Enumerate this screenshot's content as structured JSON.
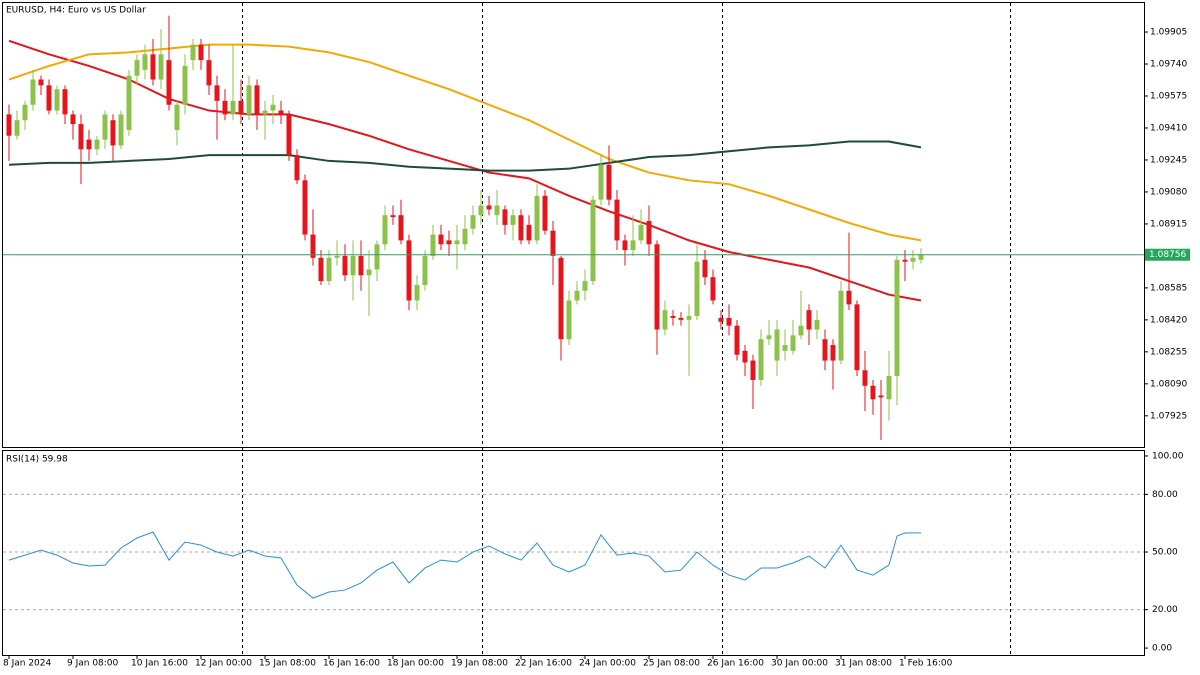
{
  "chart_data": [
    {
      "type": "candlestick",
      "title": "EURUSD, H4:  Euro vs US Dollar",
      "up_color": "#8bc34a",
      "down_color": "#e3161c",
      "ylim": [
        1.07764,
        1.1006
      ],
      "yticks": [
        1.09905,
        {
          "value": 1.0974,
          "label": "1.09740"
        },
        1.09575,
        {
          "value": 1.0941,
          "label": "1.09410"
        },
        1.09245,
        {
          "value": 1.0908,
          "label": "1.09080"
        },
        1.08915,
        1.08585,
        {
          "value": 1.0842,
          "label": "1.08420"
        },
        1.08255,
        {
          "value": 1.0809,
          "label": "1.08090"
        },
        1.07925
      ],
      "current_price": 1.08756,
      "current_price_color": "#26a65b",
      "xticks": [
        {
          "value": 0,
          "label": "8 Jan 2024"
        },
        {
          "value": 8,
          "label": "9 Jan 08:00"
        },
        {
          "value": 16,
          "label": "10 Jan 16:00"
        },
        {
          "value": 24,
          "label": "12 Jan 00:00"
        },
        {
          "value": 32,
          "label": "15 Jan 08:00"
        },
        {
          "value": 40,
          "label": "16 Jan 16:00"
        },
        {
          "value": 48,
          "label": "18 Jan 00:00"
        },
        {
          "value": 56,
          "label": "19 Jan 08:00"
        },
        {
          "value": 64,
          "label": "22 Jan 16:00"
        },
        {
          "value": 72,
          "label": "24 Jan 00:00"
        },
        {
          "value": 80,
          "label": "25 Jan 08:00"
        },
        {
          "value": 88,
          "label": "26 Jan 16:00"
        },
        {
          "value": 96,
          "label": "30 Jan 00:00"
        },
        {
          "value": 104,
          "label": "31 Jan 08:00"
        },
        {
          "value": 112,
          "label": "1 Feb 16:00"
        }
      ],
      "open": [
        1.0948,
        1.0937,
        1.0945,
        1.0953,
        1.0966,
        1.0963,
        1.095,
        1.0961,
        1.0948,
        1.0943,
        1.0935,
        1.093,
        1.0935,
        1.0945,
        1.0932,
        1.094,
        1.0968,
        1.0971,
        1.0979,
        1.0966,
        1.0976,
        1.094,
        1.0953,
        1.0976,
        1.0984,
        1.0976,
        1.0963,
        1.0955,
        1.0948,
        1.0955,
        1.0948,
        1.0963,
        1.0948,
        1.095,
        1.095,
        1.0948,
        1.0927,
        1.0914,
        1.0886,
        1.0874,
        1.0862,
        1.0874,
        1.0875,
        1.0865,
        1.0875,
        1.0865,
        1.0868,
        1.0881,
        1.0896,
        1.0896,
        1.0883,
        1.0852,
        1.086,
        1.0875,
        1.0886,
        1.0883,
        1.0881,
        1.0881,
        1.0889,
        1.0896,
        1.0901,
        1.0896,
        1.0899,
        1.0891,
        1.0896,
        1.0891,
        1.0883,
        1.0906,
        1.0888,
        1.0874,
        1.0832,
        1.0852,
        1.0857,
        1.0862,
        1.0904,
        1.0922,
        1.0904,
        1.0883,
        1.0878,
        1.0883,
        1.0893,
        1.0881,
        1.0837,
        1.0844,
        1.0843,
        1.0842,
        1.0844,
        1.0873,
        1.0864,
        1.0843,
        1.0843,
        1.0839,
        1.0826,
        1.0821,
        1.0811,
        1.0832,
        1.0821,
        1.0826,
        1.0826,
        1.0834,
        1.0847,
        1.0837,
        1.0832,
        1.0829,
        1.0821,
        1.0857,
        1.085,
        1.0816,
        1.0808,
        1.0803,
        1.0801,
        1.0813,
        1.0873,
        1.0872,
        1.0873
      ],
      "high": [
        1.0953,
        1.095,
        1.0955,
        1.0971,
        1.0968,
        1.0966,
        1.0963,
        1.0963,
        1.095,
        1.0948,
        1.094,
        1.0937,
        1.095,
        1.0948,
        1.095,
        1.0971,
        1.0979,
        1.0984,
        1.0987,
        1.0992,
        1.0999,
        1.0955,
        1.0979,
        1.0987,
        1.0987,
        1.0984,
        1.0968,
        1.0961,
        1.0984,
        1.0966,
        1.0968,
        1.0966,
        1.0955,
        1.0958,
        1.0955,
        1.095,
        1.093,
        1.0917,
        1.0899,
        1.0878,
        1.0878,
        1.0883,
        1.0881,
        1.0883,
        1.0883,
        1.0878,
        1.0883,
        1.0901,
        1.0901,
        1.0904,
        1.0886,
        1.0865,
        1.0878,
        1.0891,
        1.0891,
        1.0888,
        1.0891,
        1.0896,
        1.0901,
        1.0909,
        1.0906,
        1.0909,
        1.0901,
        1.0899,
        1.0899,
        1.0896,
        1.0912,
        1.0909,
        1.0893,
        1.0875,
        1.0857,
        1.0862,
        1.0868,
        1.0906,
        1.0927,
        1.0932,
        1.0909,
        1.0886,
        1.0896,
        1.0899,
        1.0901,
        1.0883,
        1.0852,
        1.0847,
        1.0846,
        1.085,
        1.0881,
        1.0878,
        1.0868,
        1.0847,
        1.085,
        1.0842,
        1.0829,
        1.0824,
        1.0837,
        1.0842,
        1.0842,
        1.0837,
        1.0842,
        1.0857,
        1.085,
        1.0847,
        1.0837,
        1.0832,
        1.0862,
        1.0887,
        1.0852,
        1.0826,
        1.0811,
        1.0811,
        1.0826,
        1.0875,
        1.0878,
        1.0878,
        1.0879
      ],
      "low": [
        1.0924,
        1.0935,
        1.094,
        1.095,
        1.0958,
        1.0948,
        1.0948,
        1.0943,
        1.0935,
        1.0912,
        1.0924,
        1.0927,
        1.093,
        1.0924,
        1.093,
        1.0937,
        1.0963,
        1.0966,
        1.0963,
        1.0961,
        1.095,
        1.0932,
        1.0948,
        1.0971,
        1.0971,
        1.0958,
        1.0935,
        1.0945,
        1.0945,
        1.0943,
        1.0945,
        1.094,
        1.0935,
        1.0943,
        1.0943,
        1.0924,
        1.0912,
        1.0883,
        1.087,
        1.086,
        1.086,
        1.087,
        1.0862,
        1.0852,
        1.0857,
        1.0844,
        1.0862,
        1.0878,
        1.0891,
        1.0881,
        1.0847,
        1.0847,
        1.0857,
        1.0873,
        1.0878,
        1.0875,
        1.0868,
        1.0878,
        1.0886,
        1.0891,
        1.0896,
        1.0891,
        1.0886,
        1.0883,
        1.0881,
        1.0881,
        1.0881,
        1.0886,
        1.086,
        1.0821,
        1.0829,
        1.085,
        1.0852,
        1.086,
        1.0901,
        1.0901,
        1.0878,
        1.087,
        1.0875,
        1.0881,
        1.0875,
        1.0824,
        1.0834,
        1.0839,
        1.0839,
        1.0813,
        1.0842,
        1.086,
        1.085,
        1.0837,
        1.0834,
        1.0821,
        1.0813,
        1.0796,
        1.0808,
        1.0829,
        1.0813,
        1.0821,
        1.0824,
        1.0832,
        1.0829,
        1.0832,
        1.0816,
        1.0806,
        1.0819,
        1.0847,
        1.0813,
        1.0795,
        1.0793,
        1.078,
        1.079,
        1.0798,
        1.0862,
        1.0868,
        1.0871
      ],
      "close": [
        1.0937,
        1.0945,
        1.0953,
        1.0966,
        1.0963,
        1.095,
        1.0961,
        1.0948,
        1.0943,
        1.093,
        1.093,
        1.0935,
        1.0948,
        1.0932,
        1.0948,
        1.0968,
        1.0976,
        1.0979,
        1.0966,
        1.0979,
        1.0953,
        1.0953,
        1.0973,
        1.0984,
        1.0976,
        1.0963,
        1.0955,
        1.0948,
        1.0955,
        1.0948,
        1.0963,
        1.0948,
        1.095,
        1.0953,
        1.0948,
        1.0927,
        1.0914,
        1.0886,
        1.0874,
        1.0862,
        1.0874,
        1.0875,
        1.0865,
        1.0875,
        1.0865,
        1.0868,
        1.0881,
        1.0896,
        1.0895,
        1.0883,
        1.0852,
        1.086,
        1.0875,
        1.0886,
        1.0881,
        1.0881,
        1.0883,
        1.0889,
        1.0896,
        1.0901,
        1.0899,
        1.0901,
        1.0891,
        1.0896,
        1.0883,
        1.0883,
        1.0906,
        1.0888,
        1.0875,
        1.0832,
        1.0852,
        1.0857,
        1.0862,
        1.0904,
        1.0922,
        1.0904,
        1.0883,
        1.0878,
        1.0883,
        1.0891,
        1.0881,
        1.0837,
        1.0847,
        1.0843,
        1.0842,
        1.0844,
        1.0872,
        1.0864,
        1.0852,
        1.0841,
        1.0839,
        1.0824,
        1.082,
        1.0811,
        1.0832,
        1.0834,
        1.0837,
        1.0829,
        1.0834,
        1.0839,
        1.0837,
        1.0842,
        1.0821,
        1.0821,
        1.0857,
        1.085,
        1.0816,
        1.0808,
        1.0801,
        1.0802,
        1.0813,
        1.0873,
        1.0872,
        1.0874,
        1.08756
      ],
      "overlays": [
        {
          "color": "#e3161c",
          "x": [
            0,
            5,
            10,
            15,
            20,
            25,
            30,
            35,
            40,
            45,
            50,
            55,
            60,
            65,
            70,
            75,
            80,
            85,
            90,
            95,
            100,
            105,
            110,
            114
          ],
          "values": [
            1.0986,
            1.0979,
            1.0973,
            1.0966,
            1.0956,
            1.095,
            1.0948,
            1.0948,
            1.0943,
            1.0937,
            1.093,
            1.0924,
            1.0918,
            1.0915,
            1.0906,
            1.0898,
            1.0891,
            1.0883,
            1.0877,
            1.0873,
            1.0869,
            1.0862,
            1.0855,
            1.0852
          ]
        },
        {
          "color": "#f5a800",
          "x": [
            0,
            5,
            10,
            15,
            20,
            25,
            30,
            35,
            40,
            45,
            50,
            55,
            60,
            65,
            70,
            75,
            80,
            85,
            90,
            95,
            100,
            105,
            110,
            114
          ],
          "values": [
            1.0966,
            1.0973,
            1.0979,
            1.098,
            1.0982,
            1.0984,
            1.0984,
            1.0983,
            1.098,
            1.0975,
            1.0968,
            1.0961,
            1.0953,
            1.0945,
            1.0935,
            1.0925,
            1.0918,
            1.0914,
            1.0912,
            1.0906,
            1.0899,
            1.0892,
            1.0886,
            1.0883
          ]
        },
        {
          "color": "#1d4d3a",
          "x": [
            0,
            5,
            10,
            15,
            20,
            25,
            30,
            35,
            40,
            45,
            50,
            55,
            60,
            65,
            70,
            75,
            80,
            85,
            90,
            95,
            100,
            105,
            110,
            114
          ],
          "values": [
            1.0922,
            1.0923,
            1.0923,
            1.0924,
            1.0925,
            1.0927,
            1.0927,
            1.0927,
            1.0924,
            1.0923,
            1.0921,
            1.092,
            1.0919,
            1.0919,
            1.092,
            1.0923,
            1.0926,
            1.0927,
            1.0929,
            1.0931,
            1.0932,
            1.0934,
            1.0934,
            1.0931
          ]
        }
      ]
    },
    {
      "type": "line",
      "title": "RSI(14) 59.98",
      "ylim": [
        -3.6,
        103.1
      ],
      "yticks": [
        {
          "value": 100,
          "label": "100.00"
        },
        {
          "value": 80,
          "label": "80.00"
        },
        {
          "value": 50,
          "label": "50.00"
        },
        {
          "value": 20,
          "label": "20.00"
        },
        {
          "value": 0,
          "label": "0.00"
        }
      ],
      "series": [
        {
          "color": "#2a8fd6",
          "x": [
            0,
            2,
            4,
            6,
            8,
            10,
            12,
            14,
            16,
            18,
            20,
            22,
            24,
            26,
            28,
            30,
            32,
            34,
            36,
            38,
            40,
            42,
            44,
            46,
            48,
            50,
            52,
            54,
            56,
            58,
            60,
            62,
            64,
            66,
            68,
            70,
            72,
            74,
            76,
            78,
            80,
            82,
            84,
            86,
            88,
            90,
            92,
            94,
            96,
            98,
            100,
            102,
            104,
            106,
            108,
            110,
            111,
            112,
            114
          ],
          "values": [
            45.8,
            48.4,
            51.0,
            48.4,
            44.3,
            42.7,
            43.2,
            52.1,
            57.3,
            60.4,
            45.8,
            55.2,
            53.6,
            50.0,
            47.9,
            51.0,
            47.9,
            46.9,
            32.8,
            26.0,
            29.2,
            30.2,
            33.9,
            40.6,
            44.8,
            33.9,
            41.7,
            45.8,
            44.8,
            50.0,
            53.1,
            49.0,
            45.8,
            54.7,
            43.2,
            39.6,
            43.2,
            58.9,
            48.4,
            49.5,
            47.9,
            39.6,
            40.6,
            50.0,
            43.2,
            38.0,
            35.4,
            41.7,
            41.7,
            44.3,
            47.9,
            41.7,
            53.6,
            40.6,
            38.0,
            43.2,
            58.3,
            59.9,
            59.98
          ]
        }
      ]
    }
  ]
}
